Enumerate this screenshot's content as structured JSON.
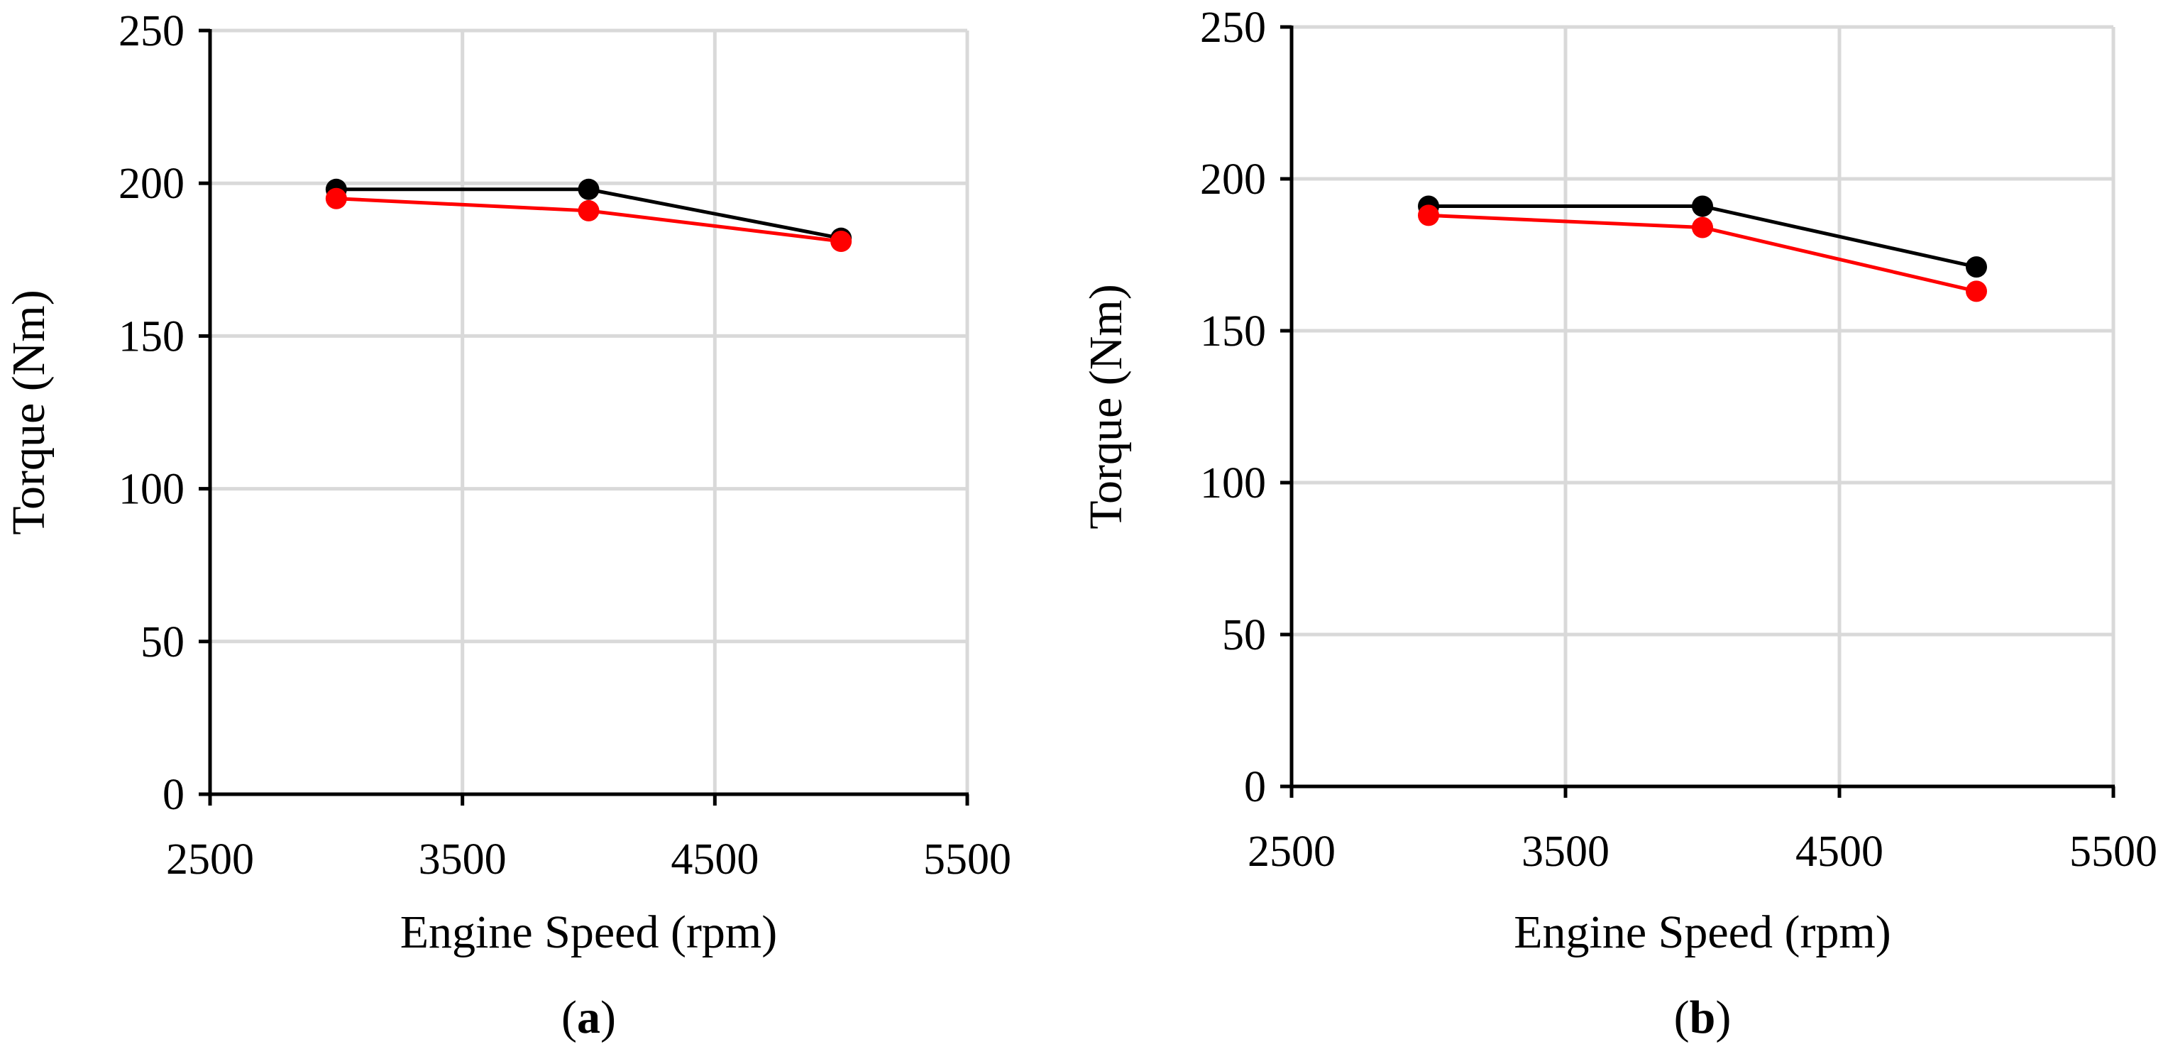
{
  "chart_data": [
    {
      "id": "a",
      "type": "line",
      "panel_label": {
        "open": "(",
        "letter": "a",
        "close": ")"
      },
      "xlabel": "Engine Speed (rpm)",
      "ylabel": "Torque (Nm)",
      "xlim": [
        2500,
        5500
      ],
      "ylim": [
        0,
        250
      ],
      "xticks": [
        2500,
        3500,
        4500,
        5500
      ],
      "yticks": [
        0,
        50,
        100,
        150,
        200,
        250
      ],
      "grid": true,
      "x": [
        3000,
        4000,
        5000
      ],
      "series": [
        {
          "name": "series-black",
          "color": "#000000",
          "values": [
            198,
            198,
            182
          ]
        },
        {
          "name": "series-red",
          "color": "#ff0000",
          "values": [
            195,
            191,
            181
          ]
        }
      ]
    },
    {
      "id": "b",
      "type": "line",
      "panel_label": {
        "open": "(",
        "letter": "b",
        "close": ")"
      },
      "xlabel": "Engine Speed (rpm)",
      "ylabel": "Torque (Nm)",
      "xlim": [
        2500,
        5500
      ],
      "ylim": [
        0,
        250
      ],
      "xticks": [
        2500,
        3500,
        4500,
        5500
      ],
      "yticks": [
        0,
        50,
        100,
        150,
        200,
        250
      ],
      "grid": true,
      "x": [
        3000,
        4000,
        5000
      ],
      "series": [
        {
          "name": "series-black",
          "color": "#000000",
          "values": [
            191,
            191,
            171
          ]
        },
        {
          "name": "series-red",
          "color": "#ff0000",
          "values": [
            188,
            184,
            163
          ]
        }
      ]
    }
  ]
}
